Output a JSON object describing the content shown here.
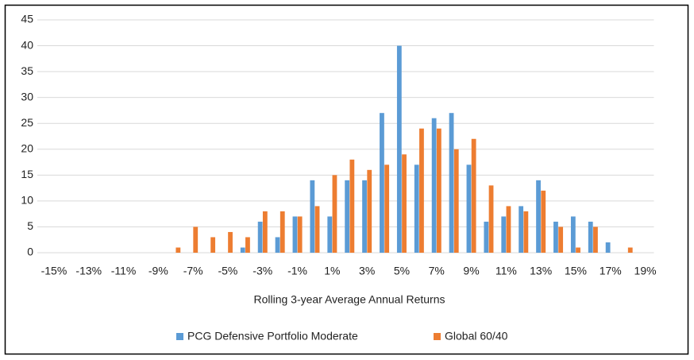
{
  "chart_data": {
    "type": "bar",
    "categories": [
      "-15%",
      null,
      "-13%",
      null,
      "-11%",
      null,
      "-9%",
      null,
      "-7%",
      null,
      "-5%",
      null,
      "-3%",
      null,
      "-1%",
      null,
      "1%",
      null,
      "3%",
      null,
      "5%",
      null,
      "7%",
      null,
      "9%",
      null,
      "11%",
      null,
      "13%",
      null,
      "15%",
      null,
      "17%",
      null,
      "19%"
    ],
    "series": [
      {
        "name": "PCG Defensive Portfolio Moderate",
        "color": "#5b9bd5",
        "values": [
          0,
          0,
          0,
          0,
          0,
          0,
          0,
          0,
          0,
          0,
          0,
          1,
          6,
          3,
          7,
          14,
          7,
          14,
          14,
          27,
          40,
          17,
          26,
          27,
          17,
          6,
          7,
          9,
          14,
          6,
          7,
          6,
          2,
          0,
          0
        ]
      },
      {
        "name": "Global 60/40",
        "color": "#ed7d31",
        "values": [
          0,
          0,
          0,
          0,
          0,
          0,
          0,
          1,
          5,
          3,
          4,
          3,
          8,
          8,
          7,
          9,
          15,
          18,
          16,
          17,
          19,
          24,
          24,
          20,
          22,
          13,
          9,
          8,
          12,
          5,
          1,
          5,
          0,
          1,
          0
        ]
      }
    ],
    "x_label": "Rolling 3-year Average Annual Returns",
    "ylim": [
      0,
      45
    ],
    "yticks": [
      0,
      5,
      10,
      15,
      20,
      25,
      30,
      35,
      40,
      45
    ],
    "grid": true,
    "legend": "bottom"
  }
}
